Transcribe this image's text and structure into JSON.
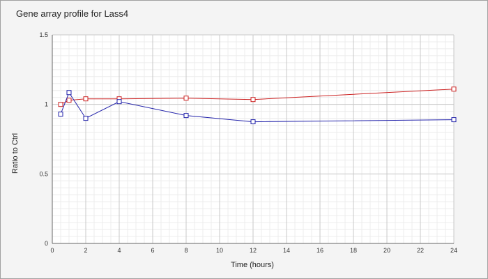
{
  "chart_data": {
    "type": "line",
    "title": "Gene array profile for Lass4",
    "xlabel": "Time (hours)",
    "ylabel": "Ratio to Ctrl",
    "xlim": [
      0,
      24
    ],
    "ylim": [
      0,
      1.5
    ],
    "x_ticks": [
      "0",
      "2",
      "4",
      "6",
      "8",
      "10",
      "12",
      "14",
      "16",
      "18",
      "20",
      "22",
      "24"
    ],
    "y_ticks": [
      "0",
      "0.5",
      "1",
      "1.5"
    ],
    "grid": true,
    "legend": "none",
    "series": [
      {
        "color": "#cc2222",
        "marker": "hollow-square",
        "x": [
          0.5,
          1,
          2,
          4,
          8,
          12,
          24
        ],
        "y": [
          1.0,
          1.03,
          1.04,
          1.04,
          1.045,
          1.035,
          1.11
        ]
      },
      {
        "color": "#2222aa",
        "marker": "hollow-square",
        "x": [
          0.5,
          1,
          2,
          4,
          8,
          12,
          24
        ],
        "y": [
          0.93,
          1.085,
          0.9,
          1.02,
          0.92,
          0.875,
          0.89
        ]
      }
    ]
  }
}
